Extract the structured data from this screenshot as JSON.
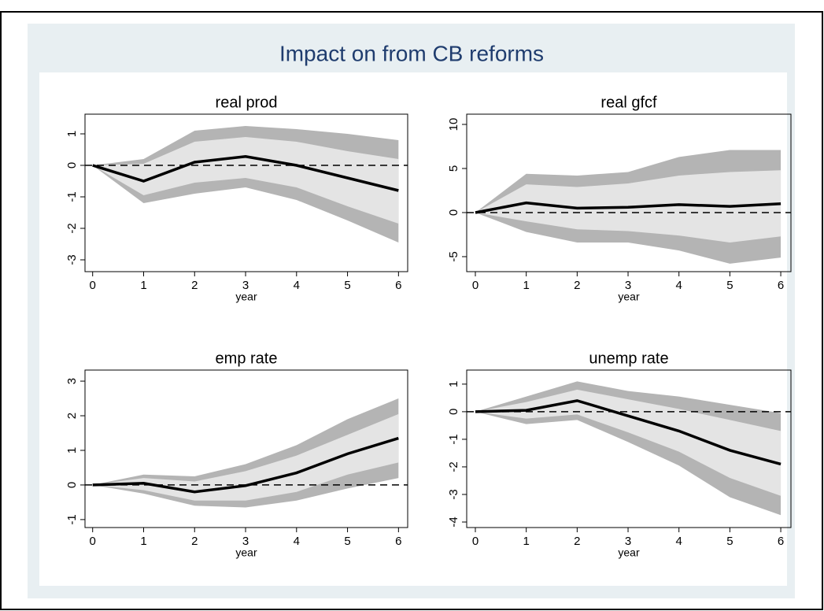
{
  "title": "Impact on from CB reforms",
  "chart_data": [
    {
      "type": "band-line",
      "title": "real prod",
      "xlabel": "year",
      "x": [
        0,
        1,
        2,
        3,
        4,
        5,
        6
      ],
      "xlim": [
        -0.15,
        6.18
      ],
      "xticks": [
        0,
        1,
        2,
        3,
        4,
        5,
        6
      ],
      "ylim": [
        -3.375,
        1.625
      ],
      "yticks": [
        1,
        0,
        -1,
        -2,
        -3
      ],
      "refline": 0,
      "bands": [
        {
          "upper": [
            0,
            0.2,
            1.1,
            1.25,
            1.15,
            1.0,
            0.8
          ],
          "lower": [
            0,
            -1.2,
            -0.9,
            -0.7,
            -1.1,
            -1.75,
            -2.45
          ],
          "color": "#b4b4b4"
        },
        {
          "upper": [
            0,
            0.05,
            0.75,
            0.9,
            0.75,
            0.45,
            0.2
          ],
          "lower": [
            0,
            -0.95,
            -0.55,
            -0.4,
            -0.7,
            -1.3,
            -1.85
          ],
          "color": "#e4e4e4"
        }
      ],
      "line": {
        "values": [
          0,
          -0.5,
          0.1,
          0.28,
          0.0,
          -0.4,
          -0.8
        ],
        "color": "#000000"
      }
    },
    {
      "type": "band-line",
      "title": "real gfcf",
      "xlabel": "year",
      "x": [
        0,
        1,
        2,
        3,
        4,
        5,
        6
      ],
      "xlim": [
        -0.17,
        6.2
      ],
      "xticks": [
        0,
        1,
        2,
        3,
        4,
        5,
        6
      ],
      "ylim": [
        -6.7,
        11.16
      ],
      "yticks": [
        10,
        5,
        0,
        -5
      ],
      "refline": 0,
      "bands": [
        {
          "upper": [
            0,
            4.4,
            4.2,
            4.6,
            6.3,
            7.1,
            7.1
          ],
          "lower": [
            0,
            -2.2,
            -3.4,
            -3.4,
            -4.3,
            -5.8,
            -5.1
          ],
          "color": "#b4b4b4"
        },
        {
          "upper": [
            0,
            3.2,
            2.9,
            3.3,
            4.2,
            4.6,
            4.8
          ],
          "lower": [
            0,
            -1,
            -1.9,
            -2.1,
            -2.6,
            -3.4,
            -2.7
          ],
          "color": "#e4e4e4"
        }
      ],
      "line": {
        "values": [
          0,
          1.1,
          0.5,
          0.6,
          0.9,
          0.7,
          1.0
        ],
        "color": "#000000"
      }
    },
    {
      "type": "band-line",
      "title": "emp rate",
      "xlabel": "year",
      "x": [
        0,
        1,
        2,
        3,
        4,
        5,
        6
      ],
      "xlim": [
        -0.15,
        6.18
      ],
      "xticks": [
        0,
        1,
        2,
        3,
        4,
        5,
        6
      ],
      "ylim": [
        -1.23,
        3.32
      ],
      "yticks": [
        3,
        2,
        1,
        0,
        -1
      ],
      "refline": 0,
      "bands": [
        {
          "upper": [
            0,
            0.3,
            0.25,
            0.6,
            1.15,
            1.9,
            2.5
          ],
          "lower": [
            0,
            -0.25,
            -0.6,
            -0.65,
            -0.45,
            -0.1,
            0.2
          ],
          "color": "#b4b4b4"
        },
        {
          "upper": [
            0,
            0.2,
            0.1,
            0.4,
            0.85,
            1.45,
            2.05
          ],
          "lower": [
            0,
            -0.15,
            -0.45,
            -0.45,
            -0.2,
            0.3,
            0.65
          ],
          "color": "#e4e4e4"
        }
      ],
      "line": {
        "values": [
          0,
          0.05,
          -0.2,
          -0.02,
          0.35,
          0.9,
          1.35
        ],
        "color": "#000000"
      }
    },
    {
      "type": "band-line",
      "title": "unemp rate",
      "xlabel": "year",
      "x": [
        0,
        1,
        2,
        3,
        4,
        5,
        6
      ],
      "xlim": [
        -0.17,
        6.2
      ],
      "xticks": [
        0,
        1,
        2,
        3,
        4,
        5,
        6
      ],
      "ylim": [
        -4.2,
        1.51
      ],
      "yticks": [
        1,
        0,
        -1,
        -2,
        -3,
        -4
      ],
      "refline": 0,
      "bands": [
        {
          "upper": [
            0,
            0.55,
            1.1,
            0.75,
            0.55,
            0.25,
            -0.05
          ],
          "lower": [
            0,
            -0.45,
            -0.3,
            -1.1,
            -1.95,
            -3.1,
            -3.75
          ],
          "color": "#b4b4b4"
        },
        {
          "upper": [
            0,
            0.35,
            0.8,
            0.45,
            0.1,
            -0.3,
            -0.7
          ],
          "lower": [
            0,
            -0.25,
            -0.1,
            -0.75,
            -1.45,
            -2.4,
            -3.05
          ],
          "color": "#e4e4e4"
        }
      ],
      "line": {
        "values": [
          0,
          0.05,
          0.4,
          -0.15,
          -0.7,
          -1.4,
          -1.9
        ],
        "color": "#000000"
      }
    }
  ]
}
